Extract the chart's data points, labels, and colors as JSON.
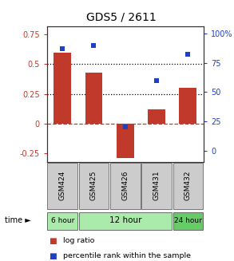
{
  "title": "GDS5 / 2611",
  "samples": [
    "GSM424",
    "GSM425",
    "GSM426",
    "GSM431",
    "GSM432"
  ],
  "log_ratio": [
    0.6,
    0.43,
    -0.29,
    0.12,
    0.3
  ],
  "percentile_rank": [
    87,
    90,
    20,
    60,
    82
  ],
  "bar_color": "#c0392b",
  "dot_color": "#2040c0",
  "ylim_left": [
    -0.32,
    0.82
  ],
  "ylim_right": [
    -9.6,
    106.4
  ],
  "yticks_left": [
    -0.25,
    0,
    0.25,
    0.5,
    0.75
  ],
  "ytick_labels_left": [
    "-0.25",
    "0",
    "0.25",
    "0.5",
    "0.75"
  ],
  "yticks_right": [
    0,
    25,
    50,
    75,
    100
  ],
  "ytick_labels_right": [
    "0",
    "25",
    "50",
    "75",
    "100%"
  ],
  "dotted_lines": [
    0.5,
    0.25
  ],
  "zero_line": 0,
  "time_labels": [
    "6 hour",
    "12 hour",
    "24 hour"
  ],
  "time_groups": [
    [
      0
    ],
    [
      1,
      2,
      3
    ],
    [
      4
    ]
  ],
  "time_colors_light": "#aaeaaa",
  "time_colors_medium": "#66cc66",
  "bg_color": "#ffffff"
}
